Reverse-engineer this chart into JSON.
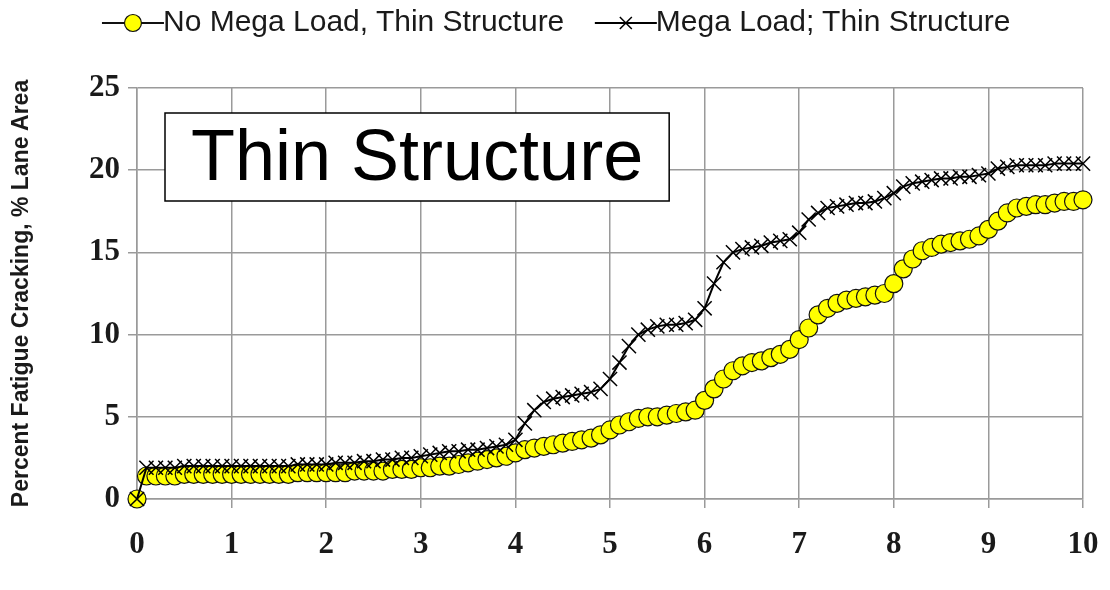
{
  "chart_data": {
    "type": "line",
    "ylabel": "Percent Fatigue Cracking, % Lane Area",
    "annotations": [
      "Thin Structure"
    ],
    "x": [
      0,
      0.1,
      0.2,
      0.3,
      0.4,
      0.5,
      0.6,
      0.7,
      0.8,
      0.9,
      1,
      1.1,
      1.2,
      1.3,
      1.4,
      1.5,
      1.6,
      1.7,
      1.8,
      1.9,
      2,
      2.1,
      2.2,
      2.3,
      2.4,
      2.5,
      2.6,
      2.7,
      2.8,
      2.9,
      3,
      3.1,
      3.2,
      3.3,
      3.4,
      3.5,
      3.6,
      3.7,
      3.8,
      3.9,
      4,
      4.1,
      4.2,
      4.3,
      4.4,
      4.5,
      4.6,
      4.7,
      4.8,
      4.9,
      5,
      5.1,
      5.2,
      5.3,
      5.4,
      5.5,
      5.6,
      5.7,
      5.8,
      5.9,
      6,
      6.1,
      6.2,
      6.3,
      6.4,
      6.5,
      6.6,
      6.7,
      6.8,
      6.9,
      7,
      7.1,
      7.2,
      7.3,
      7.4,
      7.5,
      7.6,
      7.7,
      7.8,
      7.9,
      8,
      8.1,
      8.2,
      8.3,
      8.4,
      8.5,
      8.6,
      8.7,
      8.8,
      8.9,
      9,
      9.1,
      9.2,
      9.3,
      9.4,
      9.5,
      9.6,
      9.7,
      9.8,
      9.9,
      10
    ],
    "series": [
      {
        "name": "No Mega Load, Thin Structure",
        "type": "scatter",
        "color": "#ffff00",
        "marker": "circle",
        "values": [
          0,
          1.4,
          1.4,
          1.4,
          1.4,
          1.5,
          1.5,
          1.5,
          1.5,
          1.5,
          1.5,
          1.5,
          1.5,
          1.5,
          1.5,
          1.5,
          1.5,
          1.6,
          1.6,
          1.6,
          1.6,
          1.6,
          1.6,
          1.7,
          1.7,
          1.7,
          1.7,
          1.8,
          1.8,
          1.8,
          1.9,
          1.9,
          2,
          2,
          2.1,
          2.2,
          2.3,
          2.4,
          2.5,
          2.6,
          2.8,
          3,
          3.1,
          3.2,
          3.3,
          3.4,
          3.5,
          3.6,
          3.7,
          3.9,
          4.2,
          4.5,
          4.7,
          4.9,
          5,
          5,
          5.1,
          5.2,
          5.3,
          5.4,
          6,
          6.7,
          7.3,
          7.8,
          8.1,
          8.3,
          8.4,
          8.6,
          8.8,
          9.1,
          9.7,
          10.4,
          11.2,
          11.6,
          11.9,
          12.1,
          12.2,
          12.3,
          12.4,
          12.5,
          13.1,
          14,
          14.6,
          15.1,
          15.3,
          15.5,
          15.6,
          15.7,
          15.8,
          16,
          16.4,
          16.9,
          17.4,
          17.7,
          17.8,
          17.9,
          17.9,
          18,
          18.1,
          18.1,
          18.2
        ]
      },
      {
        "name": "Mega Load; Thin Structure",
        "color": "#000000",
        "marker": "cross",
        "values": [
          0,
          1.9,
          1.9,
          1.9,
          1.9,
          2,
          2,
          2,
          2,
          2,
          2,
          2,
          2,
          2,
          2,
          2,
          2,
          2.1,
          2.1,
          2.1,
          2.1,
          2.2,
          2.2,
          2.2,
          2.3,
          2.3,
          2.4,
          2.4,
          2.5,
          2.5,
          2.6,
          2.7,
          2.8,
          2.9,
          2.9,
          3,
          3,
          3.1,
          3.2,
          3.3,
          3.6,
          4.6,
          5.4,
          5.9,
          6.1,
          6.2,
          6.3,
          6.4,
          6.5,
          6.7,
          7.3,
          8.3,
          9.3,
          10,
          10.3,
          10.5,
          10.6,
          10.6,
          10.7,
          10.9,
          11.6,
          13.1,
          14.4,
          15,
          15.2,
          15.3,
          15.4,
          15.6,
          15.7,
          15.8,
          16.2,
          17,
          17.4,
          17.7,
          17.8,
          17.9,
          18,
          18,
          18.1,
          18.3,
          18.6,
          19,
          19.2,
          19.3,
          19.4,
          19.5,
          19.5,
          19.6,
          19.6,
          19.7,
          19.8,
          20.1,
          20.2,
          20.3,
          20.3,
          20.3,
          20.3,
          20.4,
          20.4,
          20.4,
          20.4
        ]
      }
    ],
    "xlim": [
      0,
      10
    ],
    "xticks": [
      0,
      1,
      2,
      3,
      4,
      5,
      6,
      7,
      8,
      9,
      10
    ],
    "ylim": [
      0,
      25
    ],
    "yticks": [
      0,
      5,
      10,
      15,
      20,
      25
    ],
    "grid": true,
    "legend": "top"
  }
}
